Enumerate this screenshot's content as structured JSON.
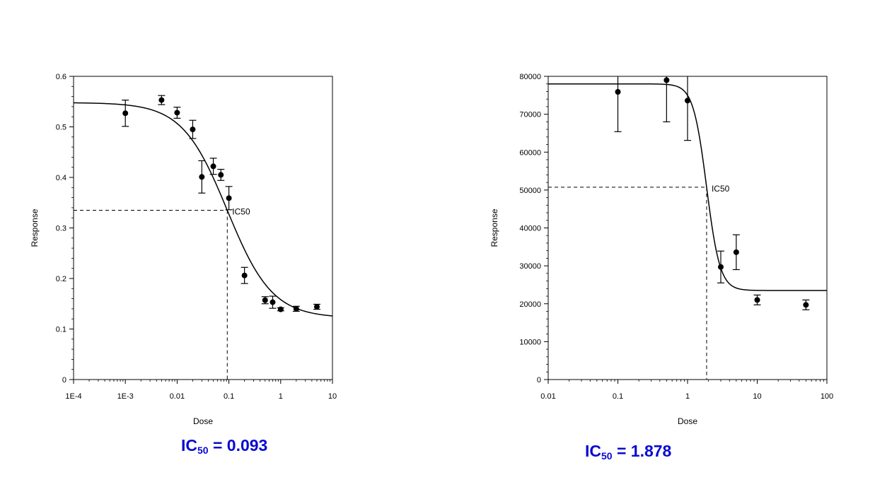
{
  "captions": [
    {
      "prefix": "IC",
      "sub": "50",
      "text": " = 0.093"
    },
    {
      "prefix": "IC",
      "sub": "50",
      "text": " = 1.878"
    }
  ],
  "chart_data": [
    {
      "type": "scatter",
      "xlabel": "Dose",
      "ylabel": "Response",
      "xscale": "log",
      "xlim": [
        0.0001,
        10
      ],
      "ylim": [
        0,
        0.6
      ],
      "xticks": [
        0.0001,
        0.001,
        0.01,
        0.1,
        1,
        10
      ],
      "xtick_labels": [
        "1E-4",
        "1E-3",
        "0.01",
        "0.1",
        "1",
        "10"
      ],
      "yticks": [
        0,
        0.1,
        0.2,
        0.3,
        0.4,
        0.5,
        0.6
      ],
      "ytick_labels": [
        "0",
        "0.1",
        "0.2",
        "0.3",
        "0.4",
        "0.5",
        "0.6"
      ],
      "grid": false,
      "points": [
        {
          "x": 0.001,
          "y": 0.527,
          "err": 0.026
        },
        {
          "x": 0.005,
          "y": 0.553,
          "err": 0.009
        },
        {
          "x": 0.01,
          "y": 0.528,
          "err": 0.011
        },
        {
          "x": 0.02,
          "y": 0.495,
          "err": 0.018
        },
        {
          "x": 0.03,
          "y": 0.401,
          "err": 0.032
        },
        {
          "x": 0.05,
          "y": 0.422,
          "err": 0.016
        },
        {
          "x": 0.07,
          "y": 0.405,
          "err": 0.011
        },
        {
          "x": 0.1,
          "y": 0.359,
          "err": 0.023
        },
        {
          "x": 0.2,
          "y": 0.206,
          "err": 0.016
        },
        {
          "x": 0.5,
          "y": 0.157,
          "err": 0.007
        },
        {
          "x": 0.7,
          "y": 0.153,
          "err": 0.012
        },
        {
          "x": 1,
          "y": 0.139,
          "err": 0.003
        },
        {
          "x": 2,
          "y": 0.14,
          "err": 0.005
        },
        {
          "x": 5,
          "y": 0.144,
          "err": 0.005
        }
      ],
      "fit": {
        "top": 0.548,
        "bottom": 0.122,
        "ic50": 0.093,
        "hill": 1.0
      },
      "ic50_marker": {
        "x": 0.093,
        "y": 0.335
      },
      "annotation": "IC50"
    },
    {
      "type": "scatter",
      "xlabel": "Dose",
      "ylabel": "Response",
      "xscale": "log",
      "xlim": [
        0.01,
        100
      ],
      "ylim": [
        0,
        80000
      ],
      "xticks": [
        0.01,
        0.1,
        1,
        10,
        100
      ],
      "xtick_labels": [
        "0.01",
        "0.1",
        "1",
        "10",
        "100"
      ],
      "yticks": [
        0,
        10000,
        20000,
        30000,
        40000,
        50000,
        60000,
        70000,
        80000
      ],
      "ytick_labels": [
        "0",
        "10000",
        "20000",
        "30000",
        "40000",
        "50000",
        "60000",
        "70000",
        "80000"
      ],
      "grid": false,
      "points": [
        {
          "x": 0.1,
          "y": 75900,
          "err": 10500
        },
        {
          "x": 0.5,
          "y": 79000,
          "err": 11000
        },
        {
          "x": 1,
          "y": 73600,
          "err": 10500
        },
        {
          "x": 3,
          "y": 29700,
          "err": 4200
        },
        {
          "x": 5,
          "y": 33600,
          "err": 4600
        },
        {
          "x": 10,
          "y": 21000,
          "err": 1300
        },
        {
          "x": 50,
          "y": 19700,
          "err": 1300
        }
      ],
      "fit": {
        "top": 78000,
        "bottom": 23500,
        "ic50": 1.878,
        "hill": 4.5
      },
      "ic50_marker": {
        "x": 1.878,
        "y": 50750
      },
      "annotation": "IC50"
    }
  ]
}
